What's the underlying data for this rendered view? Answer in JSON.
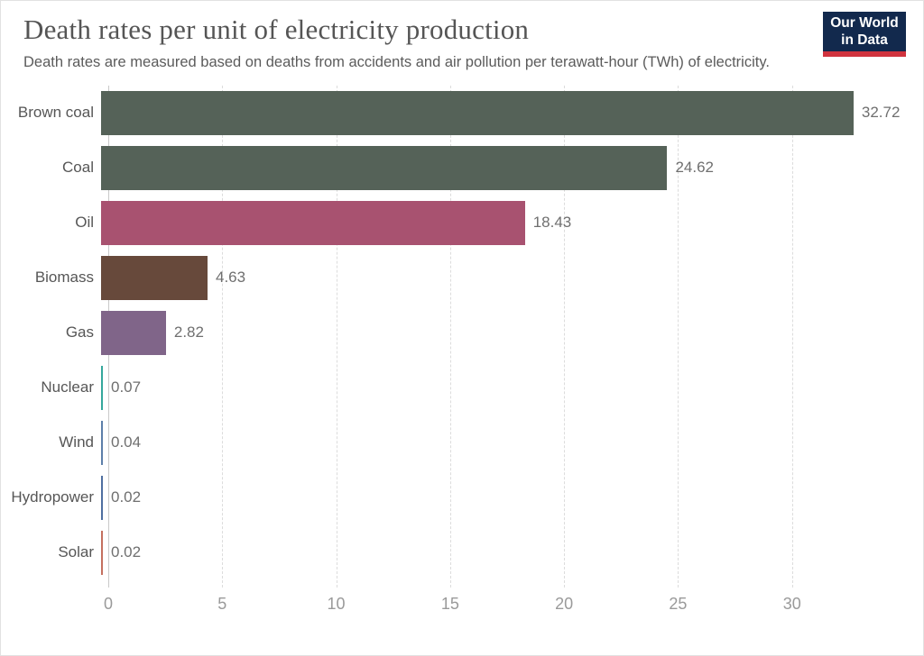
{
  "header": {
    "title": "Death rates per unit of electricity production",
    "subtitle": "Death rates are measured based on deaths from accidents and air pollution per terawatt-hour (TWh) of electricity."
  },
  "logo": {
    "line1": "Our World",
    "line2": "in Data",
    "background_color": "#12294d",
    "accent_color": "#d0333e"
  },
  "chart_data": {
    "type": "bar",
    "orientation": "horizontal",
    "title": "Death rates per unit of electricity production",
    "xlabel": "",
    "ylabel": "",
    "categories": [
      "Brown coal",
      "Coal",
      "Oil",
      "Biomass",
      "Gas",
      "Nuclear",
      "Wind",
      "Hydropower",
      "Solar"
    ],
    "values": [
      32.72,
      24.62,
      18.43,
      4.63,
      2.82,
      0.07,
      0.04,
      0.02,
      0.02
    ],
    "value_labels": [
      "32.72",
      "24.62",
      "18.43",
      "4.63",
      "2.82",
      "0.07",
      "0.04",
      "0.02",
      "0.02"
    ],
    "bar_colors": [
      "#556258",
      "#556258",
      "#a85270",
      "#67493b",
      "#806589",
      "#35a79c",
      "#5d7fa9",
      "#4f6fa0",
      "#c4705f"
    ],
    "x_ticks": [
      0,
      5,
      10,
      15,
      20,
      25,
      30
    ],
    "xlim": [
      0,
      35
    ],
    "grid": "vertical-dashed",
    "legend": "none",
    "units": "deaths per terawatt-hour (TWh)"
  }
}
